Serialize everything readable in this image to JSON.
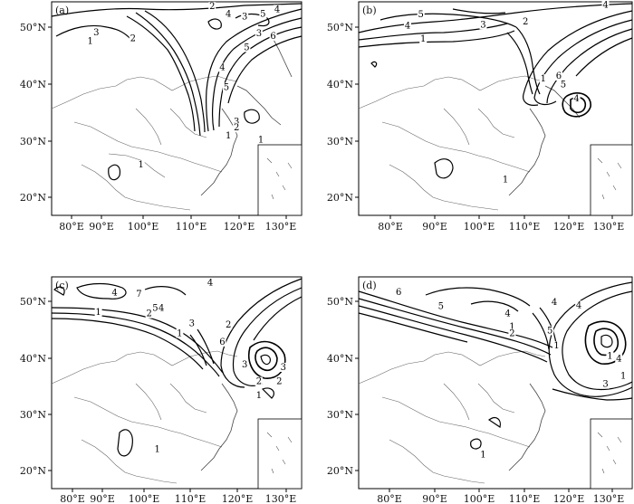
{
  "x_ticks": [
    "80°E",
    "90°E",
    "100°E",
    "110°E",
    "120°E",
    "130°E"
  ],
  "y_ticks": [
    "50°N",
    "40°N",
    "30°N",
    "20°N"
  ],
  "panels": [
    {
      "id": "a",
      "label": "(a)",
      "contour_labels": [
        {
          "text": "2",
          "lon": 113.0,
          "lat": 53.2
        },
        {
          "text": "3",
          "lon": 84.5,
          "lat": 48.6
        },
        {
          "text": "1",
          "lon": 83.0,
          "lat": 47.1
        },
        {
          "text": "2",
          "lon": 93.5,
          "lat": 47.6
        },
        {
          "text": "4",
          "lon": 117.0,
          "lat": 51.9
        },
        {
          "text": "3",
          "lon": 121.0,
          "lat": 51.4
        },
        {
          "text": "5",
          "lon": 125.5,
          "lat": 51.9
        },
        {
          "text": "4",
          "lon": 129.0,
          "lat": 52.7
        },
        {
          "text": "3",
          "lon": 124.5,
          "lat": 48.5
        },
        {
          "text": "5",
          "lon": 121.5,
          "lat": 46.0
        },
        {
          "text": "6",
          "lon": 128.0,
          "lat": 48.0
        },
        {
          "text": "4",
          "lon": 115.5,
          "lat": 42.5
        },
        {
          "text": "5",
          "lon": 116.5,
          "lat": 39.0
        },
        {
          "text": "3",
          "lon": 119.0,
          "lat": 33.0
        },
        {
          "text": "2",
          "lon": 119.0,
          "lat": 31.9
        },
        {
          "text": "1",
          "lon": 117.0,
          "lat": 30.5
        },
        {
          "text": "1",
          "lon": 95.5,
          "lat": 25.4
        },
        {
          "text": "1",
          "lon": 125.0,
          "lat": 29.8
        }
      ]
    },
    {
      "id": "b",
      "label": "(b)",
      "contour_labels": [
        {
          "text": "5",
          "lon": 87.5,
          "lat": 51.8
        },
        {
          "text": "4",
          "lon": 84.5,
          "lat": 49.8
        },
        {
          "text": "3",
          "lon": 101.5,
          "lat": 50.0
        },
        {
          "text": "2",
          "lon": 111.0,
          "lat": 50.5
        },
        {
          "text": "1",
          "lon": 88.0,
          "lat": 47.5
        },
        {
          "text": "4",
          "lon": 129.0,
          "lat": 53.5
        },
        {
          "text": "6",
          "lon": 118.5,
          "lat": 41.0
        },
        {
          "text": "5",
          "lon": 119.5,
          "lat": 39.5
        },
        {
          "text": "4",
          "lon": 122.5,
          "lat": 37.0
        },
        {
          "text": "1",
          "lon": 106.5,
          "lat": 22.8
        },
        {
          "text": "1",
          "lon": 115.0,
          "lat": 40.5
        }
      ]
    },
    {
      "id": "c",
      "label": "(c)",
      "contour_labels": [
        {
          "text": "4",
          "lon": 89.0,
          "lat": 51.2
        },
        {
          "text": "7",
          "lon": 95.0,
          "lat": 51.0
        },
        {
          "text": "5",
          "lon": 99.0,
          "lat": 48.5
        },
        {
          "text": "4",
          "lon": 100.5,
          "lat": 48.5
        },
        {
          "text": "2",
          "lon": 97.5,
          "lat": 47.5
        },
        {
          "text": "4",
          "lon": 112.5,
          "lat": 53.0
        },
        {
          "text": "1",
          "lon": 85.0,
          "lat": 47.8
        },
        {
          "text": "3",
          "lon": 108.0,
          "lat": 45.8
        },
        {
          "text": "1",
          "lon": 105.0,
          "lat": 44.0
        },
        {
          "text": "2",
          "lon": 117.0,
          "lat": 45.5
        },
        {
          "text": "6",
          "lon": 115.5,
          "lat": 42.5
        },
        {
          "text": "3",
          "lon": 121.0,
          "lat": 38.5
        },
        {
          "text": "2",
          "lon": 124.5,
          "lat": 35.5
        },
        {
          "text": "1",
          "lon": 124.5,
          "lat": 33.0
        },
        {
          "text": "3",
          "lon": 130.5,
          "lat": 38.0
        },
        {
          "text": "2",
          "lon": 129.5,
          "lat": 35.5
        },
        {
          "text": "1",
          "lon": 99.5,
          "lat": 23.5
        }
      ]
    },
    {
      "id": "d",
      "label": "(d)",
      "contour_labels": [
        {
          "text": "6",
          "lon": 82.5,
          "lat": 51.3
        },
        {
          "text": "5",
          "lon": 92.0,
          "lat": 48.8
        },
        {
          "text": "4",
          "lon": 107.0,
          "lat": 47.5
        },
        {
          "text": "1",
          "lon": 108.0,
          "lat": 45.2
        },
        {
          "text": "2",
          "lon": 108.0,
          "lat": 44.0
        },
        {
          "text": "5",
          "lon": 116.5,
          "lat": 44.5
        },
        {
          "text": "4",
          "lon": 117.5,
          "lat": 49.5
        },
        {
          "text": "1",
          "lon": 118.0,
          "lat": 41.8
        },
        {
          "text": "1",
          "lon": 130.0,
          "lat": 40.0
        },
        {
          "text": "4",
          "lon": 132.0,
          "lat": 39.5
        },
        {
          "text": "3",
          "lon": 129.0,
          "lat": 35.0
        },
        {
          "text": "1",
          "lon": 133.0,
          "lat": 36.5
        },
        {
          "text": "1",
          "lon": 101.5,
          "lat": 22.5
        },
        {
          "text": "4",
          "lon": 123.0,
          "lat": 49.0
        }
      ]
    }
  ]
}
